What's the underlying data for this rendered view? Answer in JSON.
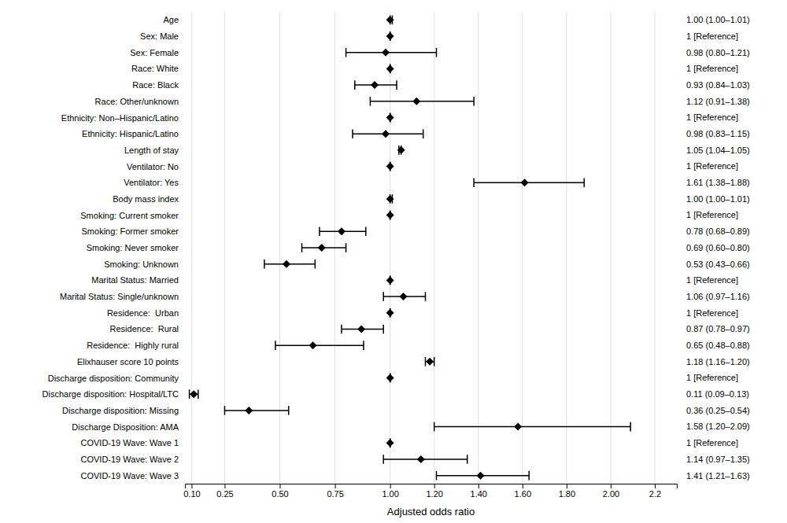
{
  "chart_data": {
    "type": "forest",
    "categories": [
      "Age",
      "Sex: Male",
      "Sex: Female",
      "Race: White",
      "Race: Black",
      "Race: Other/unknown",
      "Ethnicity: Non–Hispanic/Latino",
      "Ethnicity: Hispanic/Latino",
      "Length of stay",
      "Ventilator: No",
      "Ventilator: Yes",
      "Body mass index",
      "Smoking: Current smoker",
      "Smoking: Former smoker",
      "Smoking: Never smoker",
      "Smoking: Unknown",
      "Marital Status: Married",
      "Marital Status: Single/unknown",
      "Residence:  Urban",
      "Residence:  Rural",
      "Residence:  Highly rural",
      "Elixhauser score 10 points",
      "Discharge disposition: Community",
      "Discharge disposition: Hospital/LTC",
      "Discharge disposition: Missing",
      "Discharge Disposition: AMA",
      "COVID-19 Wave: Wave 1",
      "COVID-19 Wave: Wave 2",
      "COVID-19 Wave: Wave 3"
    ],
    "values": [
      1.0,
      1.0,
      0.98,
      1.0,
      0.93,
      1.12,
      1.0,
      0.98,
      1.05,
      1.0,
      1.61,
      1.0,
      1.0,
      0.78,
      0.69,
      0.53,
      1.0,
      1.06,
      1.0,
      0.87,
      0.65,
      1.18,
      1.0,
      0.11,
      0.36,
      1.58,
      1.0,
      1.14,
      1.41
    ],
    "ci_low": [
      1.0,
      1.0,
      0.8,
      1.0,
      0.84,
      0.91,
      1.0,
      0.83,
      1.04,
      1.0,
      1.38,
      1.0,
      1.0,
      0.68,
      0.6,
      0.43,
      1.0,
      0.97,
      1.0,
      0.78,
      0.48,
      1.16,
      1.0,
      0.09,
      0.25,
      1.2,
      1.0,
      0.97,
      1.21
    ],
    "ci_high": [
      1.01,
      1.0,
      1.21,
      1.0,
      1.03,
      1.38,
      1.0,
      1.15,
      1.05,
      1.0,
      1.88,
      1.01,
      1.0,
      0.89,
      0.8,
      0.66,
      1.0,
      1.16,
      1.0,
      0.97,
      0.88,
      1.2,
      1.0,
      0.13,
      0.54,
      2.09,
      1.0,
      1.35,
      1.63
    ],
    "annotations": [
      "1.00 (1.00–1.01)",
      "1 [Reference]",
      "0.98 (0.80–1.21)",
      "1 [Reference]",
      "0.93 (0.84–1.03)",
      "1.12 (0.91–1.38)",
      "1 [Reference]",
      "0.98 (0.83–1.15)",
      "1.05 (1.04–1.05)",
      "1 [Reference]",
      "1.61 (1.38–1.88)",
      "1.00 (1.00–1.01)",
      "1 [Reference]",
      "0.78 (0.68–0.89)",
      "0.69 (0.60–0.80)",
      "0.53 (0.43–0.66)",
      "1 [Reference]",
      "1.06 (0.97–1.16)",
      "1 [Reference]",
      "0.87 (0.78–0.97)",
      "0.65 (0.48–0.88)",
      "1.18 (1.16–1.20)",
      "1 [Reference]",
      "0.11 (0.09–0.13)",
      "0.36 (0.25–0.54)",
      "1.58 (1.20–2.09)",
      "1 [Reference]",
      "1.14 (0.97–1.35)",
      "1.41 (1.21–1.63)"
    ],
    "xlabel": "Adjusted odds ratio",
    "xlim": [
      0.07,
      2.3
    ],
    "xticks": [
      {
        "value": 0.1,
        "label": "0.10"
      },
      {
        "value": 0.25,
        "label": "0.25"
      },
      {
        "value": 0.5,
        "label": "0.50"
      },
      {
        "value": 0.75,
        "label": "0.75"
      },
      {
        "value": 1.0,
        "label": "1.00"
      },
      {
        "value": 1.2,
        "label": "1.20"
      },
      {
        "value": 1.4,
        "label": "1.40"
      },
      {
        "value": 1.6,
        "label": "1.60"
      },
      {
        "value": 1.8,
        "label": "1.80"
      },
      {
        "value": 2.0,
        "label": "2.00"
      },
      2.2
    ],
    "grid": true,
    "color": "#000000"
  }
}
